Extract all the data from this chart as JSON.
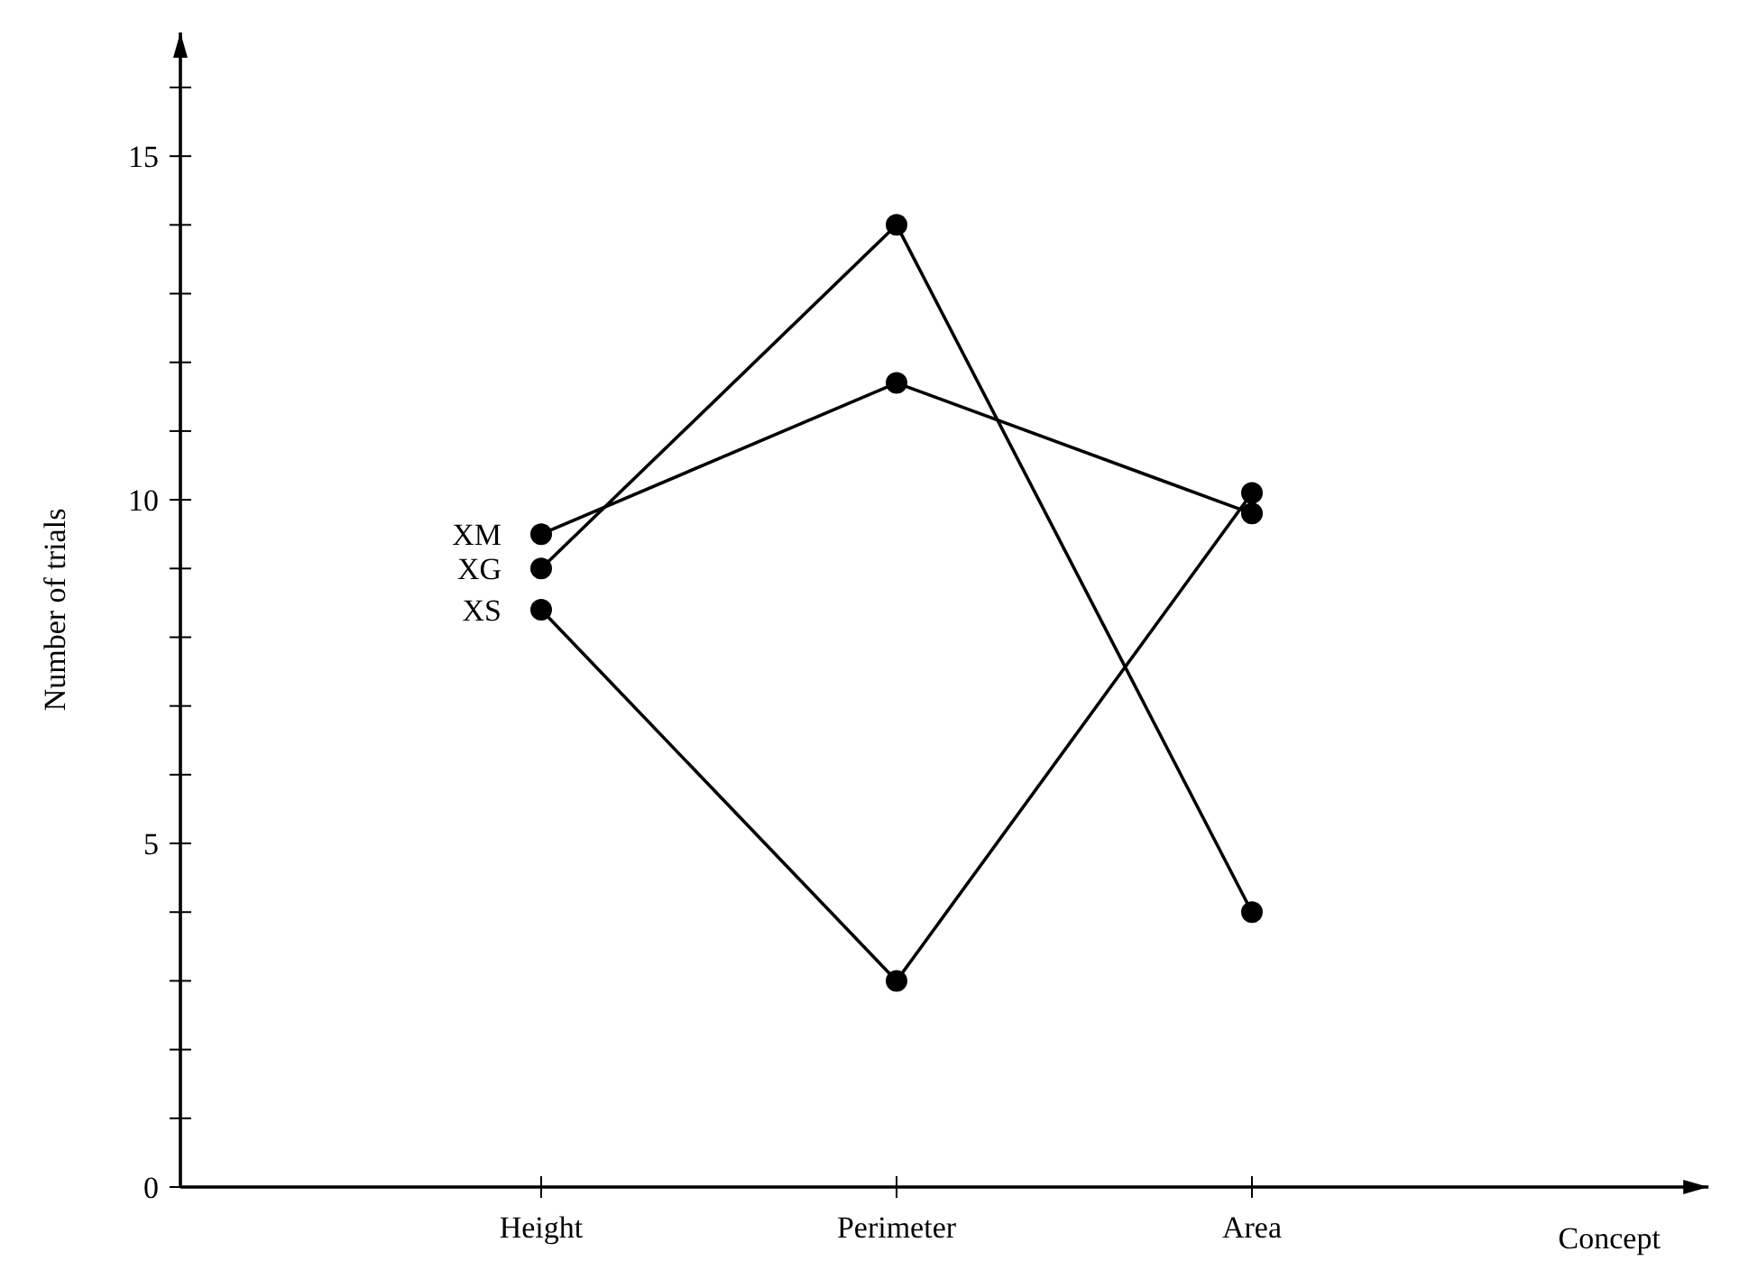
{
  "chart_data": {
    "type": "line",
    "xlabel": "Concept",
    "ylabel": "Number of trials",
    "categories": [
      "Height",
      "Perimeter",
      "Area"
    ],
    "series": [
      {
        "name": "XM",
        "color": "#000000",
        "values": [
          9.5,
          11.7,
          9.8
        ]
      },
      {
        "name": "XG",
        "color": "#000000",
        "values": [
          9.0,
          14,
          4
        ]
      },
      {
        "name": "XS",
        "color": "#000000",
        "values": [
          8.4,
          3,
          10.1
        ]
      }
    ],
    "ylim": [
      0,
      16.8
    ],
    "yticks": [
      0,
      {
        "value": 1,
        "label": null
      },
      {
        "value": 2,
        "label": null
      },
      {
        "value": 3,
        "label": null
      },
      {
        "value": 4,
        "label": null
      },
      5,
      {
        "value": 6,
        "label": null
      },
      {
        "value": 7,
        "label": null
      },
      {
        "value": 8,
        "label": null
      },
      {
        "value": 9,
        "label": null
      },
      10,
      {
        "value": 11,
        "label": null
      },
      {
        "value": 12,
        "label": null
      },
      {
        "value": 13,
        "label": null
      },
      {
        "value": 14,
        "label": null
      },
      15,
      {
        "value": 16,
        "label": null
      }
    ],
    "marker": "circle",
    "line_style": "solid",
    "grid": false,
    "legend": false
  }
}
